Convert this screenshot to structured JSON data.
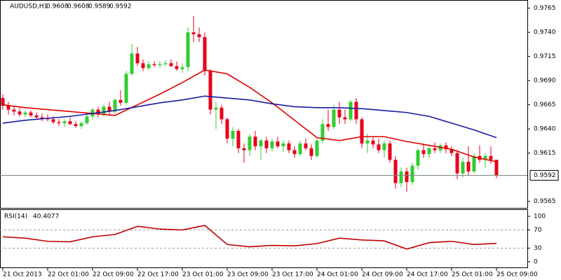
{
  "chart_data": [
    {
      "type": "candlestick",
      "title": "AUDUSD,H1",
      "categories": [
        "21 Oct 2013",
        null,
        null,
        null,
        null,
        null,
        null,
        null,
        "22 Oct 01:00",
        null,
        null,
        null,
        null,
        null,
        null,
        null,
        "22 Oct 09:00",
        null,
        null,
        null,
        null,
        null,
        null,
        null,
        "22 Oct 17:00",
        null,
        null,
        null,
        null,
        null,
        null,
        null,
        "23 Oct 01:00",
        null,
        null,
        null,
        null,
        null,
        null,
        null,
        "23 Oct 09:00",
        null,
        null,
        null,
        null,
        null,
        null,
        null,
        "23 Oct 17:00",
        null,
        null,
        null,
        null,
        null,
        null,
        null,
        "24 Oct 01:00",
        null,
        null,
        null,
        null,
        null,
        null,
        null,
        "24 Oct 09:00",
        null,
        null,
        null,
        null,
        null,
        null,
        null,
        "24 Oct 17:00",
        null,
        null,
        null,
        null,
        null,
        null,
        null,
        "25 Oct 01:00",
        null,
        null,
        null,
        null,
        null,
        null,
        null,
        "25 Oct 09:00"
      ],
      "open": [
        0.9672,
        0.9664,
        0.966,
        0.9658,
        0.9655,
        0.9657,
        0.9654,
        0.9652,
        0.9651,
        0.965,
        0.9647,
        0.9646,
        0.9648,
        0.9645,
        0.9643,
        0.9646,
        0.9653,
        0.966,
        0.9655,
        0.9663,
        0.9658,
        0.967,
        0.9667,
        0.9697,
        0.9718,
        0.9708,
        0.9703,
        0.9707,
        0.9706,
        0.9707,
        0.9708,
        0.9705,
        0.9702,
        0.9704,
        0.974,
        0.9738,
        0.9735,
        0.97,
        0.966,
        0.9662,
        0.965,
        0.963,
        0.9638,
        0.962,
        0.9618,
        0.9632,
        0.9622,
        0.9628,
        0.962,
        0.9627,
        0.9622,
        0.9625,
        0.9618,
        0.9614,
        0.9625,
        0.962,
        0.9612,
        0.9628,
        0.9645,
        0.9642,
        0.966,
        0.9652,
        0.965,
        0.9668,
        0.965,
        0.9625,
        0.9628,
        0.9624,
        0.9618,
        0.9625,
        0.9608,
        0.9584,
        0.9596,
        0.9585,
        0.9602,
        0.9618,
        0.9614,
        0.962,
        0.9618,
        0.9623,
        0.9619,
        0.9615,
        0.9594,
        0.9606,
        0.9596,
        0.9612,
        0.9608,
        0.9612,
        0.9608
      ],
      "high": [
        0.9676,
        0.9668,
        0.9664,
        0.9662,
        0.9659,
        0.9659,
        0.9657,
        0.9656,
        0.9655,
        0.9653,
        0.965,
        0.965,
        0.9652,
        0.9648,
        0.9648,
        0.9655,
        0.9662,
        0.9663,
        0.9665,
        0.9668,
        0.9672,
        0.968,
        0.97,
        0.9728,
        0.9725,
        0.9712,
        0.971,
        0.971,
        0.971,
        0.9711,
        0.9712,
        0.971,
        0.9708,
        0.9745,
        0.9757,
        0.9745,
        0.974,
        0.9702,
        0.9668,
        0.9665,
        0.9652,
        0.9642,
        0.964,
        0.9625,
        0.9635,
        0.9638,
        0.963,
        0.9632,
        0.963,
        0.9632,
        0.9628,
        0.9628,
        0.9622,
        0.9628,
        0.963,
        0.9624,
        0.963,
        0.965,
        0.966,
        0.9665,
        0.9668,
        0.966,
        0.967,
        0.9672,
        0.9652,
        0.9635,
        0.9632,
        0.963,
        0.9628,
        0.9628,
        0.9612,
        0.96,
        0.96,
        0.9605,
        0.962,
        0.9625,
        0.9622,
        0.9626,
        0.9625,
        0.9626,
        0.9622,
        0.9618,
        0.961,
        0.9622,
        0.9615,
        0.9623,
        0.9615,
        0.9622,
        0.9608
      ],
      "low": [
        0.966,
        0.9655,
        0.9654,
        0.9653,
        0.9652,
        0.9652,
        0.965,
        0.9648,
        0.9648,
        0.9645,
        0.9643,
        0.9642,
        0.9644,
        0.9641,
        0.964,
        0.9644,
        0.965,
        0.9652,
        0.9653,
        0.9655,
        0.9656,
        0.9664,
        0.9665,
        0.9695,
        0.9705,
        0.97,
        0.9701,
        0.9704,
        0.9703,
        0.9705,
        0.9704,
        0.97,
        0.9698,
        0.97,
        0.973,
        0.973,
        0.9695,
        0.9655,
        0.964,
        0.9645,
        0.9625,
        0.9622,
        0.9615,
        0.9605,
        0.9612,
        0.9618,
        0.9608,
        0.9615,
        0.9617,
        0.962,
        0.9616,
        0.9615,
        0.961,
        0.9612,
        0.9618,
        0.9608,
        0.961,
        0.9625,
        0.9638,
        0.964,
        0.9645,
        0.9645,
        0.9648,
        0.9645,
        0.962,
        0.9615,
        0.962,
        0.9615,
        0.961,
        0.9605,
        0.9578,
        0.958,
        0.9575,
        0.9582,
        0.9598,
        0.961,
        0.961,
        0.9615,
        0.9615,
        0.9615,
        0.9612,
        0.9588,
        0.959,
        0.9592,
        0.9594,
        0.9605,
        0.96,
        0.9604,
        0.9589
      ],
      "close": [
        0.9664,
        0.966,
        0.9658,
        0.9655,
        0.9657,
        0.9654,
        0.9652,
        0.9651,
        0.965,
        0.9647,
        0.9646,
        0.9648,
        0.9645,
        0.9643,
        0.9646,
        0.9653,
        0.966,
        0.9655,
        0.9663,
        0.9658,
        0.967,
        0.9667,
        0.9697,
        0.9718,
        0.9708,
        0.9703,
        0.9707,
        0.9706,
        0.9707,
        0.9708,
        0.9705,
        0.9702,
        0.9704,
        0.974,
        0.9738,
        0.9735,
        0.97,
        0.966,
        0.9662,
        0.965,
        0.963,
        0.9638,
        0.962,
        0.9618,
        0.9632,
        0.9622,
        0.9628,
        0.962,
        0.9627,
        0.9622,
        0.9625,
        0.9618,
        0.9614,
        0.9625,
        0.962,
        0.9612,
        0.9628,
        0.9645,
        0.9642,
        0.966,
        0.9652,
        0.965,
        0.9668,
        0.965,
        0.9625,
        0.9628,
        0.9624,
        0.9618,
        0.9625,
        0.9608,
        0.9584,
        0.9596,
        0.9585,
        0.9602,
        0.9618,
        0.9614,
        0.962,
        0.9618,
        0.9623,
        0.9619,
        0.9615,
        0.9594,
        0.9606,
        0.9596,
        0.9612,
        0.9608,
        0.9612,
        0.9608,
        0.9592
      ],
      "up_color": "#32cd32",
      "down_color": "#e8001c",
      "lines": [
        {
          "color": "#e00000",
          "x": [
            0,
            4,
            8,
            12,
            16,
            20,
            24,
            28,
            32,
            36,
            40,
            44,
            48,
            52,
            56,
            60,
            64,
            68,
            72,
            76,
            80,
            84,
            88
          ],
          "values": [
            0.9665,
            0.9662,
            0.966,
            0.9658,
            0.9656,
            0.9654,
            0.9665,
            0.9676,
            0.9688,
            0.9701,
            0.9697,
            0.9683,
            0.9667,
            0.9649,
            0.9631,
            0.9628,
            0.9632,
            0.9632,
            0.9627,
            0.9623,
            0.9619,
            0.9611,
            0.9606
          ]
        },
        {
          "color": "#1a1aa0",
          "x": [
            0,
            4,
            8,
            12,
            16,
            20,
            24,
            28,
            32,
            36,
            40,
            44,
            48,
            52,
            56,
            60,
            64,
            68,
            72,
            76,
            80,
            84,
            88
          ],
          "values": [
            0.9646,
            0.9649,
            0.9651,
            0.9653,
            0.9656,
            0.9659,
            0.9663,
            0.9667,
            0.967,
            0.9674,
            0.9672,
            0.967,
            0.9666,
            0.9663,
            0.9662,
            0.9662,
            0.9661,
            0.9659,
            0.9657,
            0.9653,
            0.9646,
            0.9639,
            0.9631
          ]
        }
      ],
      "ylim": [
        0.9559,
        0.9772
      ],
      "yticks": [
        0.9765,
        {
          "value": 0.974,
          "label": "0.9740"
        },
        0.9715,
        {
          "value": 0.969,
          "label": "0.9690"
        },
        0.9665,
        {
          "value": 0.964,
          "label": "0.9640"
        },
        0.9615,
        0.9565
      ]
    },
    {
      "type": "line",
      "title": "RSI(14)",
      "color": "#c00000",
      "x": [
        0,
        4,
        8,
        12,
        16,
        20,
        24,
        28,
        32,
        36,
        40,
        44,
        48,
        52,
        56,
        60,
        64,
        68,
        72,
        76,
        80,
        84,
        88
      ],
      "values": [
        55,
        52,
        45,
        44,
        55,
        60,
        78,
        72,
        70,
        80,
        38,
        33,
        36,
        35,
        40,
        52,
        48,
        46,
        28,
        42,
        45,
        38,
        40.4077
      ],
      "ylim": [
        -14,
        114
      ],
      "yticks": [
        100,
        70,
        30,
        0
      ],
      "levels": [
        70,
        30
      ]
    }
  ]
}
